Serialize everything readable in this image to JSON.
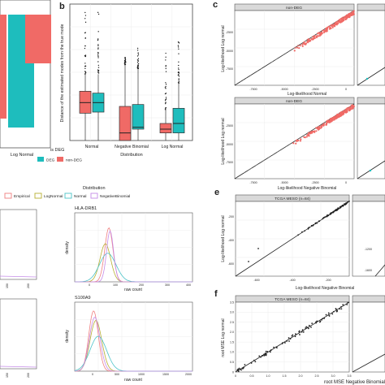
{
  "panel_labels": {
    "b": "b",
    "c": "c",
    "e": "e",
    "f": "f"
  },
  "colors": {
    "deg": "#1ebdbd",
    "non_deg": "#f06a66",
    "empirical": "#f07f7f",
    "lognormal": "#b8b032",
    "normal": "#4cc3c8",
    "negative_binomial": "#c58be8",
    "strip": "#d9d9d9"
  },
  "chart_data": [
    {
      "id": "a-partial",
      "type": "bar",
      "categories": [
        "Log Normal"
      ],
      "series": [
        {
          "name": "DEG",
          "values": [
            null
          ]
        },
        {
          "name": "non-DEG",
          "values": [
            null
          ]
        }
      ],
      "xlabel": "Log Normal"
    },
    {
      "id": "b",
      "type": "box",
      "ylabel": "Distance of the estimated modes from the true mode",
      "xlabel": "Distribution",
      "categories": [
        "Normal",
        "Negative Binomial",
        "Log Normal"
      ],
      "yrange": [
        0,
        3.6
      ],
      "series": [
        {
          "name": "DEG",
          "boxes": [
            {
              "q1": 0.75,
              "median": 1.0,
              "q3": 1.25,
              "whislo": 0.0,
              "whishi": 1.75,
              "outliers_to": 3.5
            },
            {
              "q1": 0.3,
              "median": 0.35,
              "q3": 0.95,
              "whislo": 0.0,
              "whishi": 1.9,
              "outliers_to": 2.6
            },
            {
              "q1": 0.2,
              "median": 0.45,
              "q3": 0.85,
              "whislo": 0.0,
              "whishi": 1.5,
              "outliers_to": 2.8
            }
          ]
        },
        {
          "name": "non-DEG",
          "boxes": [
            {
              "q1": 0.72,
              "median": 1.0,
              "q3": 1.3,
              "whislo": 0.0,
              "whishi": 1.75,
              "outliers_to": 3.5
            },
            {
              "q1": 0.0,
              "median": 0.2,
              "q3": 0.9,
              "whislo": 0.0,
              "whishi": 2.0,
              "outliers_to": 2.2
            },
            {
              "q1": 0.2,
              "median": 0.3,
              "q3": 0.45,
              "whislo": 0.0,
              "whishi": 0.8,
              "outliers_to": 2.4
            }
          ]
        }
      ],
      "legend": {
        "title": "is DEG",
        "items": [
          "DEG",
          "non-DEG"
        ],
        "position": "bottom"
      }
    },
    {
      "id": "c-top",
      "type": "scatter",
      "strip_title": "non-DEG",
      "xlabel": "Log-likelihood Normal",
      "ylabel": "Log-likelihood Log normal",
      "xticks": [
        "-7500",
        "-5000",
        "-2500",
        "0"
      ],
      "yticks": [
        "-2500",
        "-5000",
        "-7500"
      ],
      "xlim": [
        -8000,
        0
      ],
      "ylim": [
        -8000,
        0
      ]
    },
    {
      "id": "c-bottom",
      "type": "scatter",
      "strip_title": "non-DEG",
      "xlabel": "Log-likelihood Negative Binomial",
      "ylabel": "Log-likelihood Log normal",
      "xticks": [
        "-7500",
        "-5000",
        "-2500",
        "0"
      ],
      "yticks": [
        "-2500",
        "-5000",
        "-7500"
      ],
      "xlim": [
        -8000,
        0
      ],
      "ylim": [
        -8000,
        0
      ]
    },
    {
      "id": "d-legend",
      "type": "legend",
      "title": "Distribution",
      "items": [
        "Empirical",
        "LogNormal",
        "Normal",
        "NegativeBinomial"
      ]
    },
    {
      "id": "d-hla",
      "type": "line",
      "title": "HLA-DRB1",
      "xlabel": "raw count",
      "ylabel": "density",
      "xticks": [
        "0",
        "100",
        "200",
        "300",
        "400"
      ]
    },
    {
      "id": "d-s100",
      "type": "line",
      "title": "S100A9",
      "xlabel": "raw count",
      "ylabel": "density",
      "xticks": [
        "0",
        "500",
        "1000",
        "1500",
        "2000"
      ]
    },
    {
      "id": "d-left-partial",
      "type": "line",
      "xticks_top": [
        "150",
        "200"
      ],
      "xticks_bottom": [
        "150",
        "200"
      ]
    },
    {
      "id": "e",
      "type": "scatter",
      "strip_title": "TCGA MESO (n=84)",
      "xlabel": "Log-likelihood Negative Binomial",
      "ylabel": "Log-likelihood Log normal",
      "xticks": [
        "-600",
        "-400",
        "-200"
      ],
      "yticks": [
        "-200",
        "-400",
        "-600"
      ],
      "xlim": [
        -720,
        -80
      ],
      "ylim": [
        -720,
        -80
      ],
      "side_yticks": [
        "-1200",
        "-1600"
      ]
    },
    {
      "id": "f",
      "type": "scatter",
      "strip_title": "TCGA MESO (n=84)",
      "xlabel": "root MSE Negative Binomial",
      "ylabel": "root MSE Log normal",
      "xticks": [
        "0",
        "0.5",
        "1.0",
        "1.5",
        "2.0",
        "2.5",
        "3.0",
        "3.5"
      ],
      "yticks": [
        "3.5",
        "3.0",
        "2.5",
        "2.0",
        "1.5",
        "1.0",
        "0.5",
        "0"
      ],
      "xlim": [
        0,
        3.5
      ],
      "ylim": [
        0,
        3.5
      ]
    }
  ]
}
